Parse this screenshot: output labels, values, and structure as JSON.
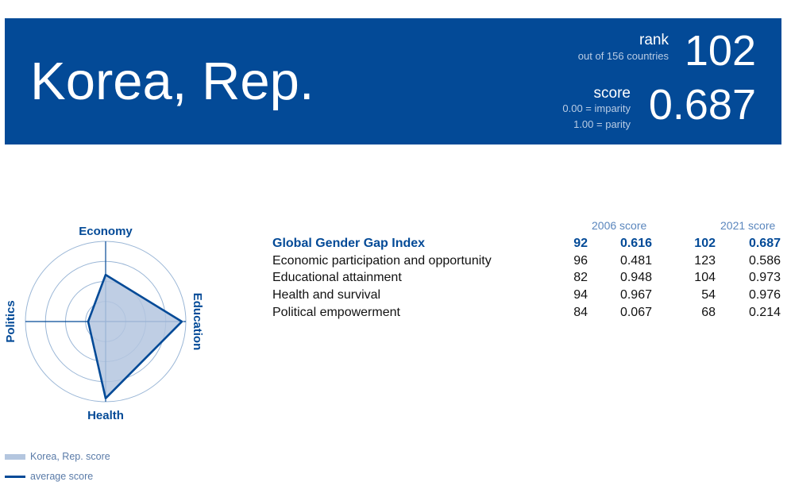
{
  "header": {
    "country": "Korea, Rep.",
    "rank_label": "rank",
    "rank_sub": "out of 156 countries",
    "rank_value": "102",
    "score_label": "score",
    "score_sub1": "0.00 = imparity",
    "score_sub2": "1.00 = parity",
    "score_value": "0.687"
  },
  "table": {
    "col_2006": "2006 score",
    "col_2021": "2021 score",
    "rows": [
      {
        "name": "Global Gender Gap Index",
        "rank_2006": "92",
        "score_2006": "0.616",
        "rank_2021": "102",
        "score_2021": "0.687"
      },
      {
        "name": "Economic participation and opportunity",
        "rank_2006": "96",
        "score_2006": "0.481",
        "rank_2021": "123",
        "score_2021": "0.586"
      },
      {
        "name": "Educational attainment",
        "rank_2006": "82",
        "score_2006": "0.948",
        "rank_2021": "104",
        "score_2021": "0.973"
      },
      {
        "name": "Health and survival",
        "rank_2006": "94",
        "score_2006": "0.967",
        "rank_2021": "54",
        "score_2021": "0.976"
      },
      {
        "name": "Political empowerment",
        "rank_2006": "84",
        "score_2006": "0.067",
        "rank_2021": "68",
        "score_2021": "0.214"
      }
    ]
  },
  "chart_data": {
    "type": "radar",
    "axes": [
      "Economy",
      "Education",
      "Health",
      "Politics"
    ],
    "range": [
      0,
      1
    ],
    "rings": [
      0.25,
      0.5,
      0.75,
      1.0
    ],
    "series": [
      {
        "name": "Korea, Rep. score",
        "values": [
          0.586,
          0.973,
          0.976,
          0.214
        ],
        "style": "fill",
        "color": "#b4c6df"
      },
      {
        "name": "average score",
        "values": [
          0.583,
          0.95,
          0.957,
          0.218
        ],
        "style": "line",
        "color": "#034a97"
      }
    ],
    "legend": "bottom-left"
  },
  "colors": {
    "brand": "#034a97",
    "fill": "#b4c6df",
    "ring": "#9ab6d6"
  }
}
